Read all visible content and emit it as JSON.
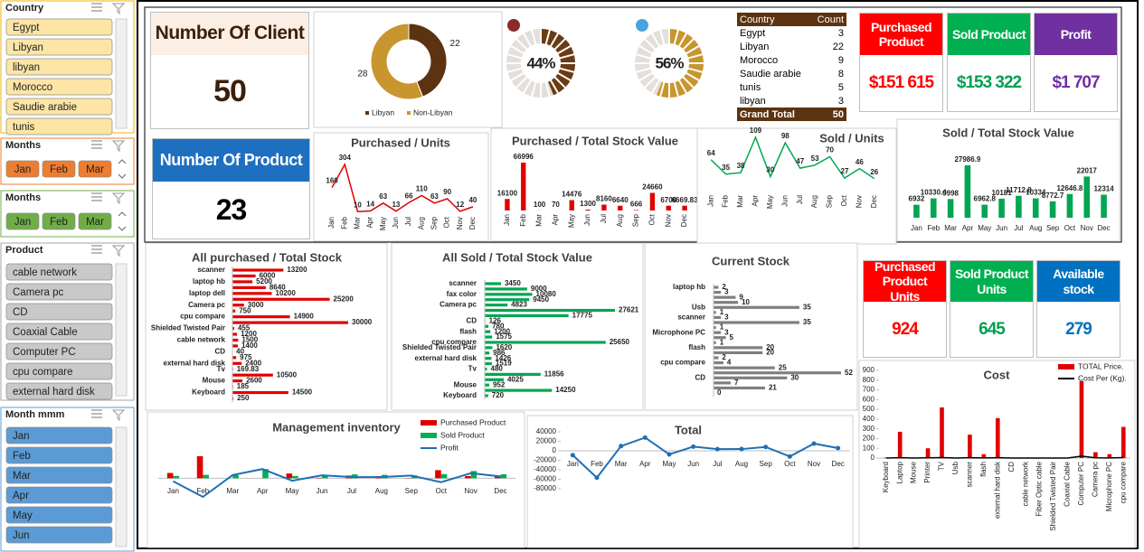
{
  "slicers": [
    {
      "title": "Country",
      "items": [
        "Egypt",
        "Libyan",
        "libyan",
        "Morocco",
        "Saudie arabie",
        "tunis"
      ],
      "color": "#fde5a6"
    },
    {
      "title": "Months",
      "items": [
        "Jan",
        "Feb",
        "Mar"
      ],
      "color": "#ed7d31"
    },
    {
      "title": "Months",
      "items": [
        "Jan",
        "Feb",
        "Mar"
      ],
      "color": "#70ad47"
    },
    {
      "title": "Product",
      "items": [
        "cable network",
        "Camera pc",
        "CD",
        "Coaxial Cable",
        "Computer PC",
        "cpu compare",
        "external hard disk"
      ],
      "color": "#c9c9c9"
    },
    {
      "title": "Month mmm",
      "items": [
        "Jan",
        "Feb",
        "Mar",
        "Apr",
        "May",
        "Jun"
      ],
      "color": "#5b9bd5"
    }
  ],
  "kpis": [
    {
      "title": "Number Of Client",
      "value": 50,
      "color": "#fbeee4"
    },
    {
      "title": "Number Of Product",
      "value": 23,
      "color": "#1f6fc0"
    },
    {
      "title": "Purchased Product",
      "value": "$151 615",
      "color": "#ff0000"
    },
    {
      "title": "Sold Product",
      "value": "$153 322",
      "color": "#00b050"
    },
    {
      "title": "Profit",
      "value": "$1 707",
      "color": "#7030a0"
    },
    {
      "title": "Purchased Product Units",
      "value": 924,
      "color": "#ff0000"
    },
    {
      "title": "Sold Product Units",
      "value": 645,
      "color": "#00b050"
    },
    {
      "title": "Available stock",
      "value": 279,
      "color": "#0070c0"
    }
  ],
  "pivot": {
    "headers": [
      "Country",
      "Count"
    ],
    "rows": [
      [
        "Egypt",
        3
      ],
      [
        "Libyan",
        22
      ],
      [
        "Morocco",
        9
      ],
      [
        "Saudie arabie",
        8
      ],
      [
        "tunis",
        5
      ],
      [
        "libyan",
        3
      ]
    ],
    "total": [
      "Grand Total",
      50
    ]
  },
  "chart_data": [
    {
      "type": "pie",
      "categories": [
        "Libyan",
        "Non-Libyan"
      ],
      "values": [
        22,
        28
      ],
      "colors": [
        "#5c3310",
        "#c8962e"
      ]
    },
    {
      "type": "gauge",
      "value": 44,
      "value_label": "44%",
      "color": "#6b3c14",
      "track_color": "#e3dfda"
    },
    {
      "type": "gauge",
      "value": 56,
      "value_label": "56%",
      "color": "#c8962e",
      "track_color": "#e3dfda"
    },
    {
      "type": "line",
      "title": "Purchased / Units",
      "categories": [
        "Jan",
        "Feb",
        "Mar",
        "Apr",
        "May",
        "Jun",
        "Jul",
        "Aug",
        "Sep",
        "Oct",
        "Nov",
        "Dec"
      ],
      "values": [
        160,
        304,
        10,
        14,
        63,
        13,
        66,
        110,
        63,
        90,
        12,
        40
      ],
      "color": "#e00000"
    },
    {
      "type": "bar",
      "title": "Purchased / Total Stock Value",
      "categories": [
        "Jan",
        "Feb",
        "Mar",
        "Apr",
        "May",
        "Jun",
        "Jul",
        "Aug",
        "Sep",
        "Oct",
        "Nov",
        "Dec"
      ],
      "values": [
        16100,
        66996,
        100,
        70,
        14476,
        1300,
        8160,
        6640,
        666,
        24660,
        6700,
        6669.83
      ],
      "color": "#e00000"
    },
    {
      "type": "line",
      "title": "Sold / Units",
      "categories": [
        "Jan",
        "Feb",
        "Mar",
        "Apr",
        "May",
        "Jun",
        "Jul",
        "Aug",
        "Sep",
        "Oct",
        "Nov",
        "Dec"
      ],
      "values": [
        64,
        35,
        38,
        109,
        30,
        98,
        47,
        53,
        70,
        27,
        46,
        26
      ],
      "color": "#00a651"
    },
    {
      "type": "bar",
      "title": "Sold / Total Stock Value",
      "categories": [
        "Jan",
        "Feb",
        "Mar",
        "Apr",
        "May",
        "Jun",
        "Jul",
        "Aug",
        "Sep",
        "Oct",
        "Nov",
        "Dec"
      ],
      "values": [
        6932,
        10330.4,
        9998,
        27986.9,
        6962.8,
        10181,
        11712.8,
        10334,
        8772.7,
        12646.8,
        22017,
        12314
      ],
      "color": "#00a651"
    },
    {
      "type": "bar",
      "orientation": "horizontal",
      "title": "All purchased / Total Stock",
      "categories": [
        "scanner",
        null,
        "laptop hb",
        null,
        "laptop dell",
        null,
        "Camera pc",
        null,
        "cpu compare",
        null,
        "Shielded Twisted Pair",
        null,
        "cable network",
        null,
        "CD",
        null,
        "external hard disk",
        "Tv",
        null,
        "Mouse",
        null,
        "Keyboard",
        null
      ],
      "values": [
        13200,
        6000,
        5200,
        8640,
        10200,
        25200,
        3000,
        750,
        14900,
        30000,
        455,
        1200,
        1500,
        1400,
        40,
        975,
        2400,
        169.83,
        10500,
        2600,
        185,
        14500,
        250
      ],
      "color": "#e00000"
    },
    {
      "type": "bar",
      "orientation": "horizontal",
      "title": "All Sold / Total Stock Value",
      "categories": [
        "scanner",
        null,
        "fax color",
        null,
        "Camera pc",
        null,
        null,
        "CD",
        null,
        "flash",
        null,
        "cpu compare",
        "Shielded Twisted Pair",
        null,
        "external hard disk",
        null,
        "Tv",
        null,
        null,
        "Mouse",
        null,
        "Keyboard"
      ],
      "values": [
        3450,
        9000,
        10080,
        9450,
        4823,
        27621,
        17775,
        126,
        780,
        1200,
        1575,
        25650,
        1620,
        986,
        1426,
        1519,
        480,
        11856,
        4025,
        952,
        14250,
        720
      ],
      "color": "#00a651"
    },
    {
      "type": "bar",
      "orientation": "horizontal",
      "title": "Current Stock",
      "categories": [
        "laptop hb",
        null,
        null,
        null,
        "Usb",
        null,
        "scanner",
        null,
        null,
        "Microphone PC",
        null,
        null,
        "flash",
        null,
        null,
        "cpu compare",
        null,
        null,
        "CD",
        null,
        null,
        null
      ],
      "values": [
        2,
        3,
        9,
        10,
        35,
        1,
        3,
        35,
        1,
        3,
        5,
        1,
        20,
        20,
        2,
        4,
        25,
        52,
        30,
        7,
        21,
        0
      ],
      "color": "#7f7f7f"
    },
    {
      "type": "bar",
      "title": "Management inventory",
      "categories": [
        "Jan",
        "Feb",
        "Mar",
        "Apr",
        "May",
        "Jun",
        "Jul",
        "Aug",
        "Sep",
        "Oct",
        "Nov",
        "Dec"
      ],
      "series": [
        {
          "name": "Purchased Product",
          "color": "#e00000",
          "values": [
            16100,
            66996,
            100,
            70,
            14476,
            1300,
            8160,
            6640,
            666,
            24660,
            6700,
            6669.83
          ]
        },
        {
          "name": "Sold Product",
          "color": "#00b050",
          "values": [
            6932,
            10330.4,
            9998,
            27986.9,
            6962.8,
            10181,
            11712.8,
            10334,
            8772.7,
            12646.8,
            22017,
            12314
          ]
        },
        {
          "name": "Profit",
          "type": "line",
          "color": "#1f6fb4",
          "values": [
            -9168,
            -56666,
            9898,
            27917,
            -7513,
            8881,
            3553,
            3694,
            8107,
            -12013,
            15317,
            5644
          ]
        }
      ]
    },
    {
      "type": "line",
      "title": "Total",
      "categories": [
        "Jan",
        "Feb",
        "Mar",
        "Apr",
        "May",
        "Jun",
        "Jul",
        "Aug",
        "Sep",
        "Oct",
        "Nov",
        "Dec"
      ],
      "values": [
        -9168,
        -56666,
        9898,
        27917,
        -7513,
        8881,
        3553,
        3694,
        8107,
        -12013,
        15317,
        5644
      ],
      "color": "#1f6fb4",
      "ylim": [
        -80000,
        40000
      ],
      "yticks": [
        40000,
        20000,
        0,
        -20000,
        -40000,
        -60000,
        -80000
      ]
    },
    {
      "type": "bar",
      "title": "Cost",
      "categories": [
        "Keyboard",
        "Laptop",
        "Mouse",
        "Printer",
        "TV",
        "Usb",
        "scanner",
        "flash",
        "external hard disk",
        "CD",
        "cable network",
        "Fiber Optic cable",
        "Shielded Twisted Pair",
        "Coaxial Cable",
        "Computer PC",
        "Camera pc",
        "Microphone PC",
        "cpu compare"
      ],
      "series": [
        {
          "name": "TOTAL Price.",
          "color": "#e00000",
          "values": [
            5,
            270,
            0,
            100,
            520,
            0,
            240,
            40,
            410,
            0,
            0,
            0,
            0,
            0,
            790,
            60,
            40,
            320
          ]
        },
        {
          "name": "Cost Per (Kg).",
          "type": "line",
          "color": "#000000",
          "values": [
            0,
            3,
            0,
            2,
            5,
            0,
            3,
            1,
            4,
            0,
            0,
            0,
            0,
            0,
            20,
            2,
            1,
            5
          ]
        }
      ],
      "ylim": [
        0,
        900
      ],
      "yticks": [
        0,
        100,
        200,
        300,
        400,
        500,
        600,
        700,
        800,
        900
      ]
    }
  ]
}
